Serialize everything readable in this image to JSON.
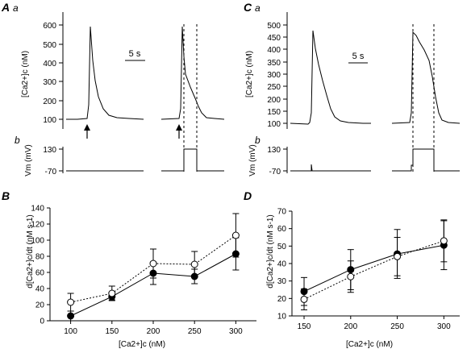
{
  "panels": {
    "A": {
      "letter": "A",
      "sub_a": "a",
      "sub_b": "b",
      "scale_label": "5 s"
    },
    "C": {
      "letter": "C",
      "sub_a": "a",
      "sub_b": "b",
      "scale_label": "5 s"
    },
    "B": {
      "letter": "B"
    },
    "D": {
      "letter": "D"
    }
  },
  "trace_axes": {
    "A": {
      "ylabel_ca": "[Ca2+]c (nM)",
      "ca_ticks": [
        "100",
        "200",
        "300",
        "400",
        "500",
        "600"
      ],
      "ylabel_vm": "Vm (mV)",
      "vm_ticks": [
        "130",
        "-70"
      ]
    },
    "C": {
      "ylabel_ca": "[Ca2+]c (nM)",
      "ca_ticks": [
        "100",
        "150",
        "200",
        "250",
        "300",
        "350",
        "400",
        "450",
        "500"
      ],
      "ylabel_vm": "Vm (mV)",
      "vm_ticks": [
        "130",
        "-70"
      ]
    }
  },
  "chart_data": [
    {
      "type": "line",
      "panel": "B",
      "xlabel": "[Ca2+]c (nM)",
      "ylabel": "d[Ca2+]c/dt (nM s-1)",
      "x": [
        100,
        150,
        200,
        250,
        300
      ],
      "xlim": [
        75,
        325
      ],
      "ylim": [
        0,
        140
      ],
      "xticks": [
        100,
        150,
        200,
        250,
        300
      ],
      "yticks": [
        0,
        20,
        40,
        60,
        80,
        100,
        120,
        140
      ],
      "series": [
        {
          "marker": "filled-circle",
          "line": "solid",
          "values": [
            6,
            30,
            59,
            55,
            83
          ],
          "errors": [
            6,
            4,
            14,
            9,
            20
          ]
        },
        {
          "marker": "open-circle",
          "line": "dotted",
          "values": [
            23,
            34,
            71,
            70,
            106
          ],
          "errors": [
            11,
            9,
            18,
            16,
            27
          ]
        }
      ],
      "grid": false
    },
    {
      "type": "line",
      "panel": "D",
      "xlabel": "[Ca2+]c (nM)",
      "ylabel": "d[Ca2+]c/dt (nM s-1)",
      "x": [
        150,
        200,
        250,
        300
      ],
      "xlim": [
        137,
        317
      ],
      "ylim": [
        10,
        70
      ],
      "xticks": [
        150,
        200,
        250,
        300
      ],
      "yticks": [
        10,
        20,
        30,
        40,
        50,
        60,
        70
      ],
      "series": [
        {
          "marker": "filled-circle",
          "line": "solid",
          "values": [
            24,
            36.5,
            45.5,
            50.5
          ],
          "errors": [
            8,
            11.5,
            14,
            14
          ]
        },
        {
          "marker": "open-circle",
          "line": "dotted",
          "values": [
            19.5,
            32.5,
            44,
            53
          ],
          "errors": [
            6,
            9,
            11,
            12
          ]
        }
      ],
      "grid": false
    }
  ]
}
